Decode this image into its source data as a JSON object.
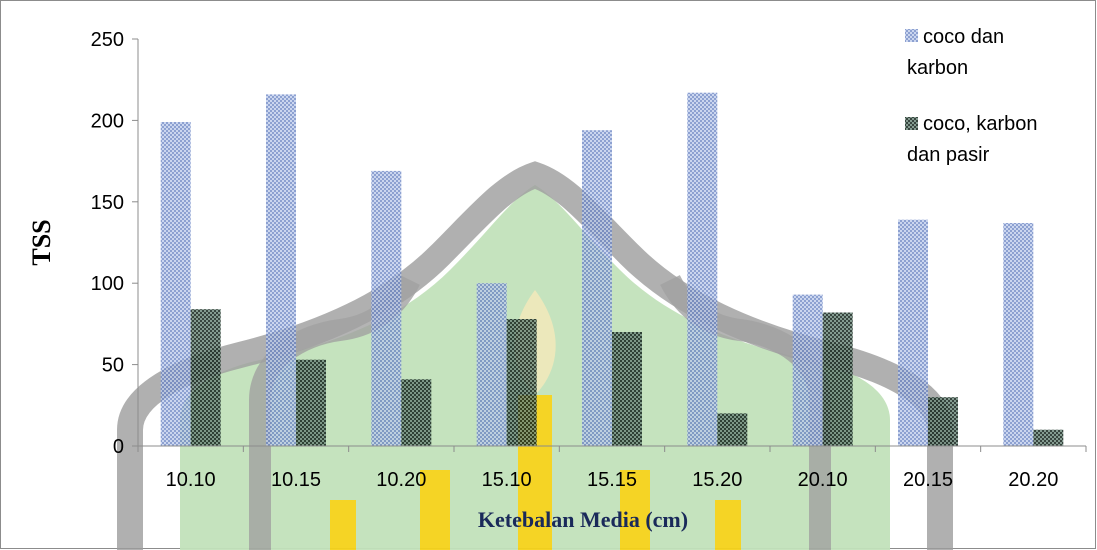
{
  "chart_data": {
    "type": "bar",
    "categories": [
      "10.10",
      "10.15",
      "10.20",
      "15.10",
      "15.15",
      "15.20",
      "20.10",
      "20.15",
      "20.20"
    ],
    "series": [
      {
        "name": "coco dan karbon",
        "name_lines": [
          "coco dan",
          "karbon"
        ],
        "values": [
          199,
          216,
          169,
          100,
          194,
          217,
          93,
          139,
          137
        ]
      },
      {
        "name": "coco, karbon dan pasir",
        "name_lines": [
          "coco, karbon",
          "dan pasir"
        ],
        "values": [
          84,
          53,
          41,
          78,
          70,
          20,
          82,
          30,
          10
        ]
      }
    ],
    "ylabel": "TSS",
    "xlabel": "Ketebalan Media (cm)",
    "ylim": [
      0,
      250
    ],
    "yticks": [
      0,
      50,
      100,
      150,
      200,
      250
    ],
    "grid": false,
    "legend_position": "top-right",
    "colors": {
      "series1": "#8ea3d4",
      "series2": "#2f4a3e",
      "xlabel": "#1a2a5a",
      "watermark_green": "#bfe0b8",
      "watermark_gray": "#9a9a9a",
      "watermark_yellow": "#f5d21a"
    }
  }
}
